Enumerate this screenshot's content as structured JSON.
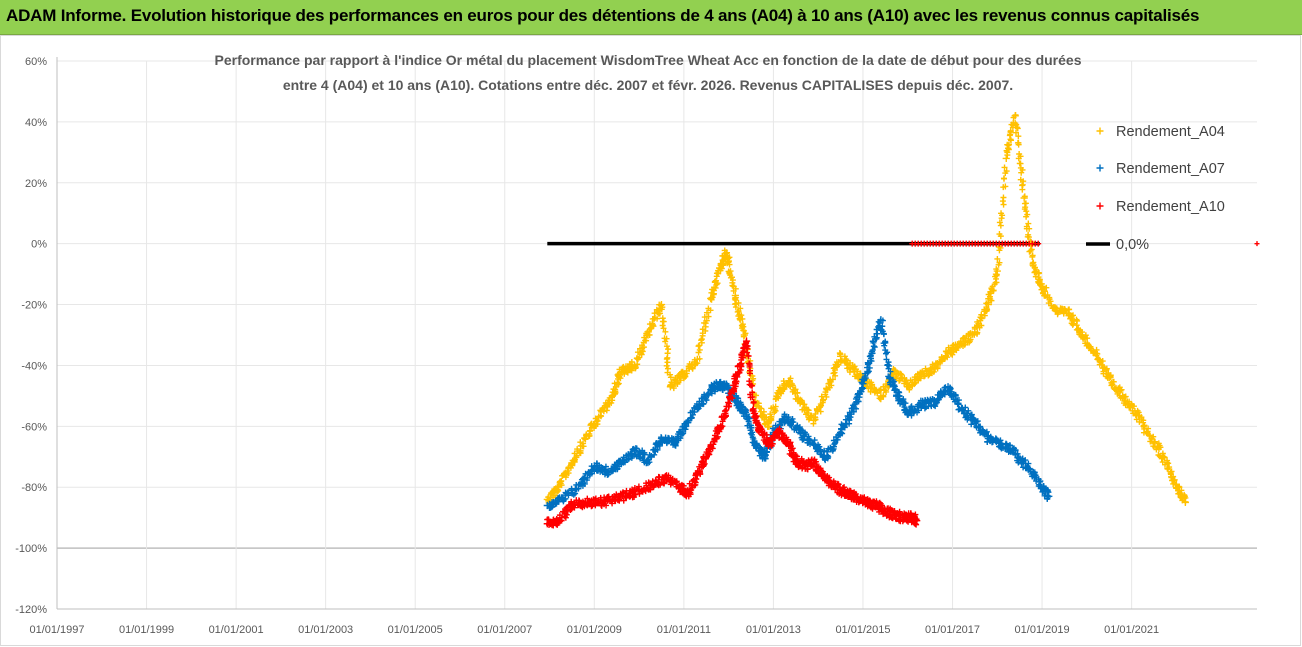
{
  "banner": {
    "title": "ADAM Informe. Evolution historique des performances en euros pour des détentions de 4 ans (A04) à 10 ans (A10) avec les revenus connus capitalisés"
  },
  "chart_data": {
    "type": "scatter",
    "title_line1": "Performance par rapport à l'indice Or métal  du placement WisdomTree Wheat Acc en fonction de la date de début pour des durées",
    "title_line2": "entre 4 (A04) et 10 ans (A10). Cotations entre déc. 2007 et févr. 2026. Revenus CAPITALISES depuis déc. 2007.",
    "xlabel": "",
    "ylabel": "",
    "xlim": [
      1997.0,
      2023.8
    ],
    "ylim": [
      -120,
      60
    ],
    "y_ticks": [
      60,
      40,
      20,
      0,
      -20,
      -40,
      -60,
      -80,
      -100,
      -120
    ],
    "y_tick_labels": [
      "60%",
      "40%",
      "20%",
      "0%",
      "-20%",
      "-40%",
      "-60%",
      "-80%",
      "-100%",
      "-120%"
    ],
    "x_ticks": [
      1997,
      1999,
      2001,
      2003,
      2005,
      2007,
      2009,
      2011,
      2013,
      2015,
      2017,
      2019,
      2021
    ],
    "x_tick_labels": [
      "01/01/1997",
      "01/01/1999",
      "01/01/2001",
      "01/01/2003",
      "01/01/2005",
      "01/01/2007",
      "01/01/2009",
      "01/01/2011",
      "01/01/2013",
      "01/01/2015",
      "01/01/2017",
      "01/01/2019",
      "01/01/2021"
    ],
    "grid": true,
    "legend_position": "right",
    "series": [
      {
        "name": "Rendement_A04",
        "color": "#ffc000",
        "marker": "+",
        "x": [
          2007.95,
          2008.2,
          2008.5,
          2008.8,
          2009.1,
          2009.4,
          2009.6,
          2009.9,
          2010.2,
          2010.5,
          2010.7,
          2011.0,
          2011.3,
          2011.6,
          2011.8,
          2011.95,
          2012.15,
          2012.35,
          2012.6,
          2012.9,
          2013.1,
          2013.35,
          2013.6,
          2013.9,
          2014.2,
          2014.5,
          2014.8,
          2015.1,
          2015.4,
          2015.7,
          2016.0,
          2016.3,
          2016.6,
          2016.9,
          2017.2,
          2017.5,
          2017.8,
          2018.0,
          2018.2,
          2018.4,
          2018.6,
          2018.8,
          2019.0,
          2019.3,
          2019.6,
          2019.9,
          2020.2,
          2020.5,
          2020.8,
          2021.1,
          2021.4,
          2021.7,
          2022.0,
          2022.2
        ],
        "y": [
          -84,
          -80,
          -72,
          -64,
          -57,
          -50,
          -42,
          -40,
          -30,
          -20,
          -47,
          -43,
          -38,
          -18,
          -8,
          -3,
          -17,
          -30,
          -52,
          -60,
          -49,
          -45,
          -52,
          -58,
          -48,
          -37,
          -42,
          -46,
          -50,
          -42,
          -47,
          -43,
          -41,
          -36,
          -33,
          -29,
          -20,
          -9,
          28,
          42,
          15,
          -7,
          -14,
          -22,
          -23,
          -30,
          -36,
          -44,
          -50,
          -56,
          -63,
          -70,
          -79,
          -85
        ]
      },
      {
        "name": "Rendement_A07",
        "color": "#0070c0",
        "marker": "+",
        "x": [
          2007.95,
          2008.3,
          2008.7,
          2009.0,
          2009.3,
          2009.6,
          2009.9,
          2010.2,
          2010.5,
          2010.8,
          2011.0,
          2011.3,
          2011.6,
          2011.8,
          2012.0,
          2012.2,
          2012.4,
          2012.6,
          2012.8,
          2013.0,
          2013.3,
          2013.6,
          2013.9,
          2014.2,
          2014.5,
          2014.8,
          2015.0,
          2015.2,
          2015.4,
          2015.6,
          2015.8,
          2016.0,
          2016.3,
          2016.6,
          2016.9,
          2017.2,
          2017.5,
          2017.8,
          2018.1,
          2018.4,
          2018.7,
          2019.0,
          2019.15
        ],
        "y": [
          -86,
          -84,
          -79,
          -73,
          -75,
          -72,
          -68,
          -71,
          -64,
          -66,
          -60,
          -54,
          -48,
          -46,
          -48,
          -52,
          -56,
          -66,
          -70,
          -62,
          -57,
          -62,
          -66,
          -70,
          -62,
          -54,
          -46,
          -36,
          -25,
          -44,
          -50,
          -56,
          -53,
          -52,
          -47,
          -54,
          -59,
          -64,
          -66,
          -69,
          -74,
          -80,
          -83
        ]
      },
      {
        "name": "Rendement_A10",
        "color": "#ff0000",
        "marker": "+",
        "x": [
          2007.95,
          2008.2,
          2008.5,
          2008.8,
          2009.1,
          2009.4,
          2009.7,
          2010.0,
          2010.3,
          2010.6,
          2010.9,
          2011.1,
          2011.3,
          2011.5,
          2011.7,
          2011.9,
          2012.1,
          2012.25,
          2012.4,
          2012.55,
          2012.7,
          2012.9,
          2013.1,
          2013.3,
          2013.5,
          2013.7,
          2013.9,
          2014.1,
          2014.3,
          2014.5,
          2014.7,
          2014.9,
          2015.1,
          2015.3,
          2015.5,
          2015.7,
          2015.9,
          2016.1,
          2016.2
        ],
        "y": [
          -92,
          -91,
          -86,
          -85,
          -85,
          -84,
          -83,
          -81,
          -79,
          -77,
          -80,
          -82,
          -76,
          -70,
          -64,
          -57,
          -48,
          -40,
          -32,
          -55,
          -61,
          -66,
          -62,
          -65,
          -71,
          -73,
          -72,
          -76,
          -79,
          -81,
          -82,
          -84,
          -85,
          -86,
          -88,
          -89,
          -90,
          -90,
          -91
        ]
      },
      {
        "name": "0,0%",
        "color": "#000000",
        "marker": "line",
        "x": [
          2007.95,
          2018.95
        ],
        "y": [
          0,
          0
        ]
      }
    ],
    "zero_band": {
      "color": "#ff0000",
      "x_start": 2016.1,
      "x_end": 2018.95,
      "y": 0
    }
  }
}
